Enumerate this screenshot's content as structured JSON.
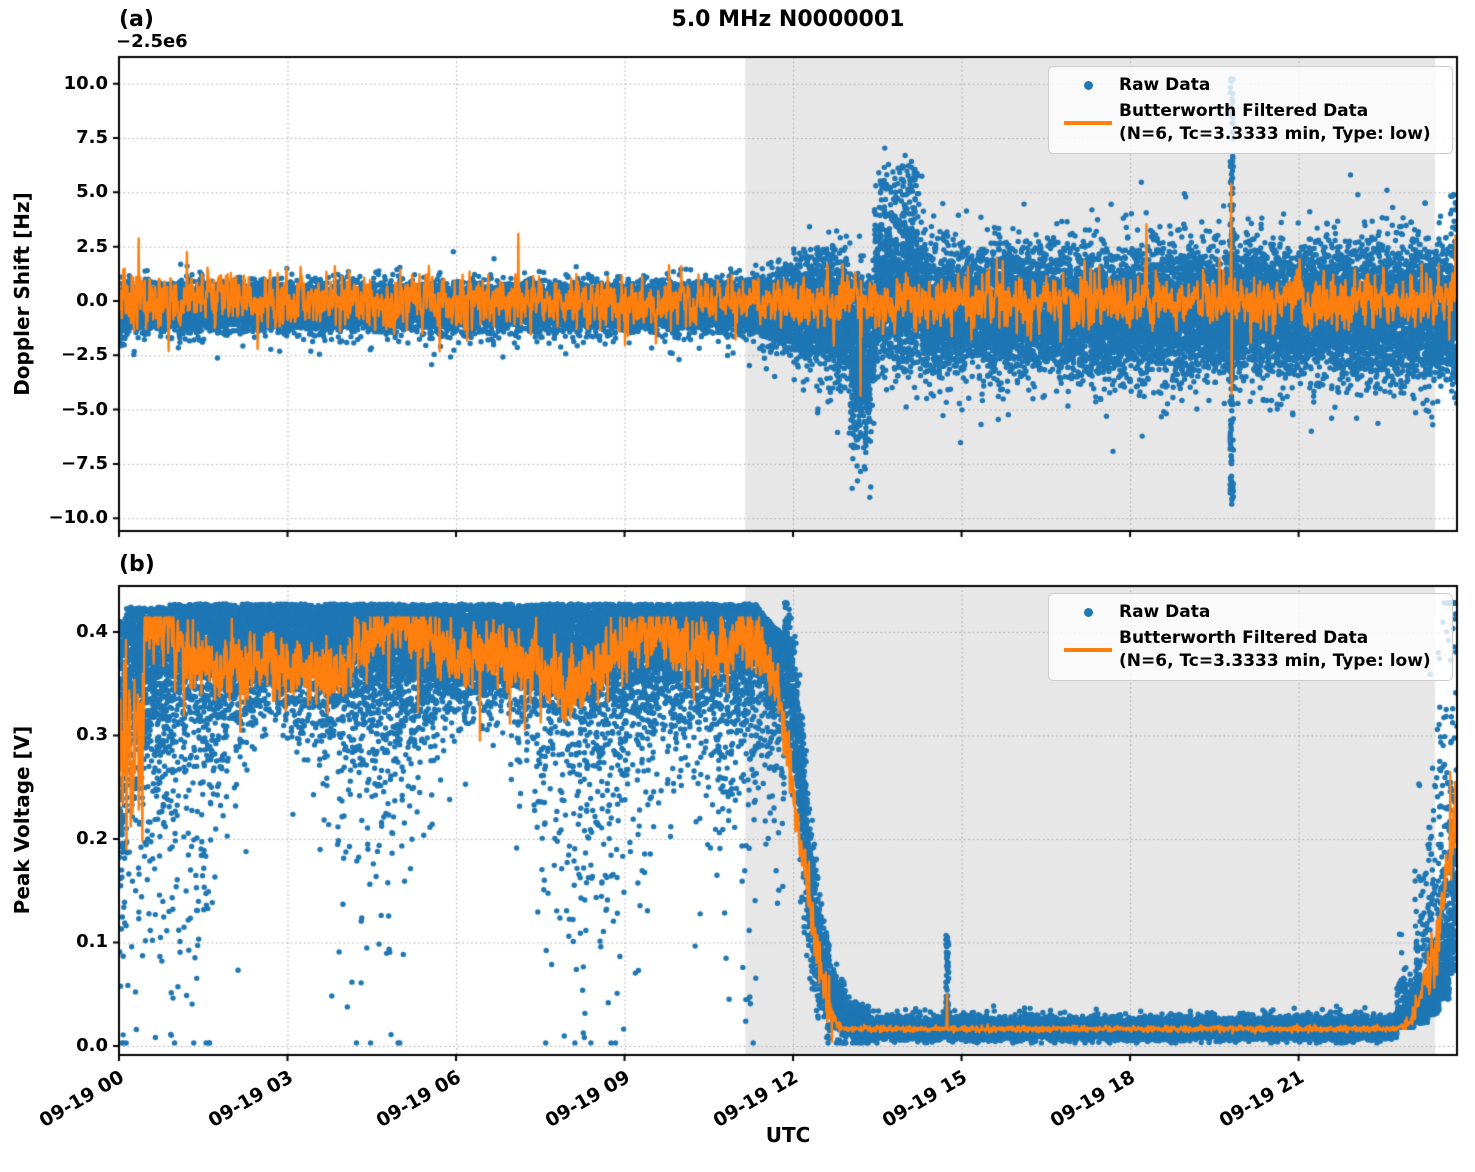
{
  "figure": {
    "title": "5.0 MHz N0000001",
    "xlabel": "UTC",
    "colors": {
      "raw": "#1f77b4",
      "filtered": "#ff7f0e",
      "shade": "#e7e7e7",
      "grid": "#adadad",
      "spine": "#000000"
    }
  },
  "panel_labels": {
    "a": "(a)",
    "b": "(b)"
  },
  "legend": {
    "raw_label": "Raw Data",
    "filtered_label": "Butterworth Filtered Data",
    "filtered_sublabel": "(N=6, Tc=3.3333 min, Type: low)"
  },
  "x_axis": {
    "label": "UTC",
    "date": "09-19",
    "range_hours": [
      0,
      23.82
    ],
    "ticks_hours": [
      0,
      3,
      6,
      9,
      12,
      15,
      18,
      21
    ],
    "tick_labels": [
      "09-19 00",
      "09-19 03",
      "09-19 06",
      "09-19 09",
      "09-19 12",
      "09-19 15",
      "09-19 18",
      "09-19 21"
    ],
    "shaded_region_hours": [
      11.15,
      23.43
    ],
    "shaded_region_note": "gray night-time interval ~11:09-23:26 UTC"
  },
  "chart_data": [
    {
      "panel": "a",
      "type": "scatter+line",
      "title": "5.0 MHz N0000001",
      "ylabel": "Doppler Shift [Hz]",
      "y_offset_text": "−2.5e6",
      "ylim": [
        -10.59,
        11.23
      ],
      "yticks": [
        10.0,
        7.5,
        5.0,
        2.5,
        0.0,
        -2.5,
        -5.0,
        -7.5,
        -10.0
      ],
      "ytick_labels": [
        "10.0",
        "7.5",
        "5.0",
        "2.5",
        "0.0",
        "−2.5",
        "−5.0",
        "−7.5",
        "−10.0"
      ],
      "grid": true,
      "legend_position": "upper right",
      "series": [
        {
          "name": "Raw Data",
          "kind": "scatter",
          "color": "#1f77b4",
          "summary": "Doppler shift relative to −2.5e6 Hz offset. Tight noise band near −0.3 Hz (±1 Hz) from 00:00 until ~11:10 UTC; variance grows to roughly −3.5..+2.5 Hz through the shaded interval; downward excursion to −7 Hz near 13:10-13:20; upward cluster to +6.3 Hz near 13:30-14:15; narrow vertical spike spanning −9.5 to +10.4 Hz near 19:48; broadened scatter to the right edge (~23:49).",
          "gen": {
            "dt_s": 2.6,
            "clampLo": -10.5,
            "clampHi": 11.0,
            "segments": [
              {
                "mode": "band",
                "t0": 0,
                "t1": 11.2,
                "c0": -0.25,
                "c1": -0.25,
                "s0": 0.48,
                "s1": 0.5,
                "tailP": 0.03,
                "tailLo": -1.7,
                "tailHi": 1.1
              },
              {
                "mode": "band",
                "t0": 11.2,
                "t1": 12.4,
                "c0": -0.3,
                "c1": -0.4,
                "s0": 0.52,
                "s1": 1.2,
                "tailP": 0.04,
                "tailLo": -2.6,
                "tailHi": 2.0
              },
              {
                "mode": "band",
                "t0": 12.4,
                "t1": 13.0,
                "c0": -0.5,
                "c1": -0.9,
                "s0": 1.25,
                "s1": 1.45,
                "tailP": 0.05,
                "tailLo": -3.5,
                "tailHi": 2.6
              },
              {
                "mode": "band",
                "t0": 13.0,
                "t1": 13.45,
                "c0": -1.5,
                "c1": -1.9,
                "s0": 1.5,
                "s1": 1.5,
                "tailP": 0.12,
                "tailLo": -4.8,
                "tailHi": 1.2
              },
              {
                "mode": "band",
                "t0": 13.45,
                "t1": 14.3,
                "c0": 0.4,
                "c1": 0.1,
                "s0": 1.6,
                "s1": 1.55,
                "tailP": 0.12,
                "tailLo": -0.8,
                "tailHi": 4.2
              },
              {
                "mode": "band",
                "t0": 14.3,
                "t1": 23.82,
                "c0": -0.45,
                "c1": -0.55,
                "s0": 1.35,
                "s1": 1.45,
                "tailP": 0.045,
                "tailLo": -3.4,
                "tailHi": 3.2
              }
            ],
            "events": [
              {
                "t0": 0,
                "t1": 0.1,
                "lo": -2.2,
                "hi": -1.2,
                "n": 10
              },
              {
                "t0": 13.02,
                "t1": 13.38,
                "lo": -7.0,
                "hi": -3.0,
                "n": 90
              },
              {
                "t0": 13.5,
                "t1": 14.25,
                "lo": 2.4,
                "hi": 6.3,
                "n": 120
              },
              {
                "t0": 19.78,
                "t1": 19.84,
                "lo": -9.5,
                "hi": 10.4,
                "n": 170
              },
              {
                "t0": 23.7,
                "t1": 23.82,
                "lo": -4.2,
                "hi": 5.0,
                "n": 45
              }
            ]
          }
        },
        {
          "name": "Butterworth Filtered Data (N=6, Tc=3.3333 min, Type: low)",
          "kind": "line",
          "color": "#ff7f0e",
          "summary": "Low-pass filtered Doppler shift oscillating around 0 Hz with typical ±1 Hz excursions and occasional ±2.5 Hz peaks; sharp dip to −4.3 Hz near 13:12; paired spike +5.4/−4.3 Hz near 19:48; +3 Hz flick at the right edge.",
          "gen": {
            "kind": "ar1",
            "dt_s": 30,
            "phi": 0.32,
            "sigma": 0.55,
            "spikeP": 0.013,
            "spikeScale": 2.4,
            "events": [
              [
                13.2,
                -4.35
              ],
              [
                13.22,
                -1.6
              ],
              [
                19.8,
                5.4
              ],
              [
                19.81,
                -4.3
              ],
              [
                23.79,
                3.0
              ]
            ]
          }
        }
      ]
    },
    {
      "panel": "b",
      "type": "scatter+line",
      "ylabel": "Peak Voltage [V]",
      "ylim": [
        -0.0087,
        0.4444
      ],
      "yticks": [
        0.0,
        0.1,
        0.2,
        0.3,
        0.4
      ],
      "ytick_labels": [
        "0.0",
        "0.1",
        "0.2",
        "0.3",
        "0.4"
      ],
      "grid": true,
      "legend_position": "upper right",
      "series": [
        {
          "name": "Raw Data",
          "kind": "scatter",
          "color": "#1f77b4",
          "summary": "Peak voltage high during daytime: dense cloud 0.30-0.43 V with downward tails to ~0.07 V from ~00:10 to ~11:20 UTC (initial rapid rise from ~0.05 V at 00:00); steep sigmoid drop 0.40→0.03 V between ~11:50 and ~12:45; flat floor ~0.015 V (±0.01) from ~13:20 to ~22:45 with a narrow spike to ~0.105 V near 14:44; rising cloud back up to ~0.42 V from ~22:45 to the right edge (~23:49).",
          "gen": {
            "dt_s": 2.6,
            "clampLo": 0.003,
            "clampHi": 0.428,
            "segments": [
              {
                "mode": "fold",
                "t0": 0,
                "t1": 0.1,
                "c": 0.41,
                "s": 0.13,
                "tailP": 0.3,
                "tau": 0.08
              },
              {
                "mode": "fold",
                "t0": 0.1,
                "t1": 0.9,
                "c": 0.424,
                "s": 0.06,
                "tailP": 0.35,
                "tau": 0.075
              },
              {
                "mode": "fold",
                "t0": 0.9,
                "t1": 11.35,
                "c": 0.427,
                "s": 0.044,
                "tailP": 0.27,
                "tau": 0.058,
                "tauWobble": 1
              },
              {
                "mode": "fold",
                "t0": 11.35,
                "t1": 11.85,
                "c0": 0.425,
                "c1": 0.395,
                "s": 0.035,
                "tailP": 0.3,
                "tau": 0.05
              },
              {
                "mode": "band",
                "t0": 11.85,
                "t1": 12.05,
                "c0": 0.385,
                "c1": 0.315,
                "s": 0.032,
                "tailP": 0.12,
                "tailLo": -0.07,
                "tailHi": 0.02
              },
              {
                "mode": "band",
                "t0": 12.05,
                "t1": 12.25,
                "c0": 0.315,
                "c1": 0.185,
                "s": 0.035,
                "tailP": 0.12,
                "tailLo": -0.07,
                "tailHi": 0.02
              },
              {
                "mode": "band",
                "t0": 12.25,
                "t1": 12.45,
                "c0": 0.185,
                "c1": 0.095,
                "s": 0.03,
                "tailP": 0.12,
                "tailLo": -0.05,
                "tailHi": 0.02
              },
              {
                "mode": "band",
                "t0": 12.45,
                "t1": 12.65,
                "c0": 0.095,
                "c1": 0.05,
                "s": 0.022,
                "tailP": 0.12,
                "tailLo": -0.03,
                "tailHi": 0.02
              },
              {
                "mode": "band",
                "t0": 12.65,
                "t1": 12.95,
                "c0": 0.05,
                "c1": 0.028,
                "s": 0.013,
                "tailP": 0.1,
                "tailLo": -0.02,
                "tailHi": 0.01
              },
              {
                "mode": "band",
                "t0": 12.95,
                "t1": 13.35,
                "c0": 0.028,
                "c1": 0.019,
                "s": 0.008,
                "tailP": 0.08,
                "tailLo": -0.008,
                "tailHi": 0.01
              },
              {
                "mode": "band",
                "t0": 13.35,
                "t1": 22.75,
                "c": 0.0165,
                "s": 0.0045,
                "tailP": 0.04,
                "tailLo": 0,
                "tailHi": 0.013
              },
              {
                "mode": "foldup",
                "t0": 22.75,
                "t1": 23.05,
                "c": 0.018,
                "s": 0.007,
                "tailP": 0.3,
                "tau": 0.02
              },
              {
                "mode": "foldup",
                "t0": 23.05,
                "t1": 23.3,
                "c": 0.022,
                "s": 0.012,
                "tailP": 0.4,
                "tau": 0.045
              },
              {
                "mode": "foldup",
                "t0": 23.3,
                "t1": 23.5,
                "c": 0.03,
                "s": 0.02,
                "tailP": 0.45,
                "tau": 0.07
              },
              {
                "mode": "foldup",
                "t0": 23.5,
                "t1": 23.68,
                "c": 0.045,
                "s": 0.035,
                "tailP": 0.5,
                "tau": 0.1
              },
              {
                "mode": "foldup",
                "t0": 23.68,
                "t1": 23.82,
                "c": 0.07,
                "s": 0.055,
                "tailP": 0.5,
                "tau": 0.13
              }
            ],
            "events": [
              {
                "t0": 14.72,
                "t1": 14.77,
                "lo": 0.02,
                "hi": 0.107,
                "n": 70
              }
            ]
          }
        },
        {
          "name": "Butterworth Filtered Data (N=6, Tc=3.3333 min, Type: low)",
          "kind": "line",
          "color": "#ff7f0e",
          "summary": "Filtered voltage: chaotic 0.20-0.38 V in the first ~30 min, then fluctuating around 0.36-0.40 V until ~11:25; smooth jagged decline to ~0.02 V by ~12:50; flat ~0.016 V with a small bump to ~0.05 V near 14:44; rise after ~22:45 peaking near 0.27 V and ending around 0.21 V.",
          "gen": {
            "kind": "piecewise",
            "dt_s": 30,
            "segments": [
              {
                "kind": "noise",
                "t0": 0,
                "t1": 0.45,
                "c": 0.295,
                "s": 0.05,
                "clampLo": 0.19,
                "clampHi": 0.4
              },
              {
                "kind": "noise",
                "t0": 0.45,
                "t1": 11.4,
                "c": 0.377,
                "s": 0.016,
                "w1": 0.02,
                "f1": 1.3,
                "p1": 1.0,
                "w2": 0.013,
                "f2": 2.9,
                "p2": 0.0,
                "dipP": 0.012,
                "dip": 0.05,
                "clampHi": 0.414
              },
              {
                "kind": "cos",
                "t0": 11.4,
                "t1": 12.85,
                "c0": 0.382,
                "c1": 0.02,
                "s": 0.012
              },
              {
                "kind": "noise",
                "t0": 12.85,
                "t1": 22.75,
                "c": 0.0165,
                "s": 0.0014,
                "clampLo": 0.012
              },
              {
                "kind": "rise",
                "t0": 22.75,
                "t1": 23.82,
                "c0": 0.018,
                "amp": 0.205,
                "pow": 2.2,
                "s": 0.02
              }
            ],
            "events": [
              [
                14.74,
                0.05
              ],
              [
                23.7,
                0.265
              ],
              [
                23.74,
                0.185
              ],
              [
                23.78,
                0.255
              ],
              [
                23.82,
                0.215
              ]
            ]
          }
        }
      ]
    }
  ]
}
